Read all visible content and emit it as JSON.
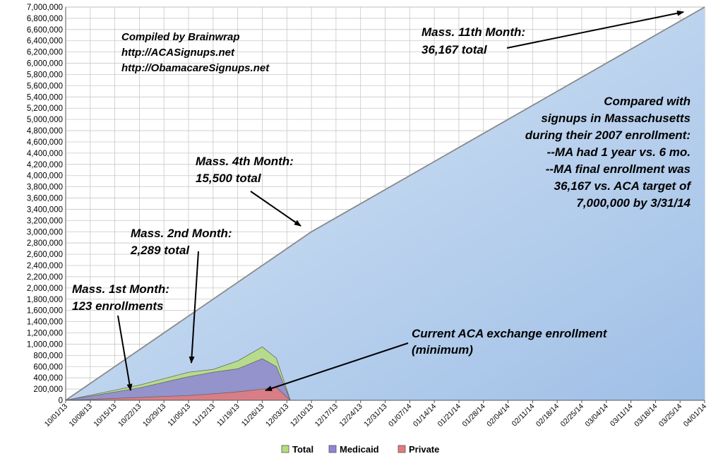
{
  "chart_data": {
    "type": "area",
    "ylim": [
      0,
      7000000
    ],
    "y_ticks": [
      "0",
      "200,000",
      "400,000",
      "600,000",
      "800,000",
      "1,000,000",
      "1,200,000",
      "1,400,000",
      "1,600,000",
      "1,800,000",
      "2,000,000",
      "2,200,000",
      "2,400,000",
      "2,600,000",
      "2,800,000",
      "3,000,000",
      "3,200,000",
      "3,400,000",
      "3,600,000",
      "3,800,000",
      "4,000,000",
      "4,200,000",
      "4,400,000",
      "4,600,000",
      "4,800,000",
      "5,000,000",
      "5,200,000",
      "5,400,000",
      "5,600,000",
      "5,800,000",
      "6,000,000",
      "6,200,000",
      "6,400,000",
      "6,600,000",
      "6,800,000",
      "7,000,000"
    ],
    "x_ticks": [
      "10/01/13",
      "10/08/13",
      "10/15/13",
      "10/22/13",
      "10/29/13",
      "11/05/13",
      "11/12/13",
      "11/19/13",
      "11/26/13",
      "12/03/13",
      "12/10/13",
      "12/17/13",
      "12/24/13",
      "12/31/13",
      "01/07/14",
      "01/14/14",
      "01/21/14",
      "01/28/14",
      "02/04/14",
      "02/11/14",
      "02/18/14",
      "02/25/14",
      "03/04/14",
      "03/11/14",
      "03/18/14",
      "03/25/14",
      "04/01/14"
    ],
    "grid": true,
    "legend_position": "bottom",
    "series": [
      {
        "name": "Total",
        "color": "#b6dd7a",
        "x": [
          "10/01/13",
          "10/22/13",
          "11/05/13",
          "11/12/13",
          "11/19/13",
          "11/26/13",
          "11/30/13",
          "12/04/13"
        ],
        "values": [
          0,
          270000,
          500000,
          550000,
          700000,
          950000,
          750000,
          0
        ]
      },
      {
        "name": "Medicaid",
        "color": "#8e86d6",
        "x": [
          "10/01/13",
          "10/22/13",
          "11/05/13",
          "11/12/13",
          "11/19/13",
          "11/26/13",
          "11/30/13",
          "12/04/13"
        ],
        "values": [
          0,
          220000,
          420000,
          500000,
          560000,
          740000,
          600000,
          0
        ]
      },
      {
        "name": "Private",
        "color": "#e57a7a",
        "x": [
          "10/01/13",
          "10/22/13",
          "11/05/13",
          "11/12/13",
          "11/19/13",
          "11/26/13",
          "11/30/13",
          "12/04/13"
        ],
        "values": [
          0,
          50000,
          85000,
          115000,
          150000,
          200000,
          230000,
          0
        ]
      }
    ],
    "projection": {
      "color": "#bcd4ef",
      "x": [
        "10/01/13",
        "12/10/13",
        "04/01/14"
      ],
      "values": [
        0,
        3000000,
        7000000
      ]
    },
    "annotations": [
      {
        "lines": [
          "Compiled by Brainwrap",
          "http://ACASignups.net",
          "http://ObamacareSignups.net"
        ]
      },
      {
        "lines": [
          "Mass. 11th Month:",
          "36,167 total"
        ]
      },
      {
        "lines": [
          "Compared with",
          "signups in Massachusetts",
          "during their 2007 enrollment:",
          "--MA had 1 year vs. 6 mo.",
          "--MA final enrollment was",
          "36,167 vs. ACA target of",
          "7,000,000 by 3/31/14"
        ]
      },
      {
        "lines": [
          "Mass. 4th Month:",
          "15,500 total"
        ]
      },
      {
        "lines": [
          "Mass. 2nd Month:",
          "2,289 total"
        ]
      },
      {
        "lines": [
          "Mass. 1st Month:",
          "123 enrollments"
        ]
      },
      {
        "lines": [
          "Current ACA exchange enrollment",
          "(minimum)"
        ]
      }
    ]
  }
}
